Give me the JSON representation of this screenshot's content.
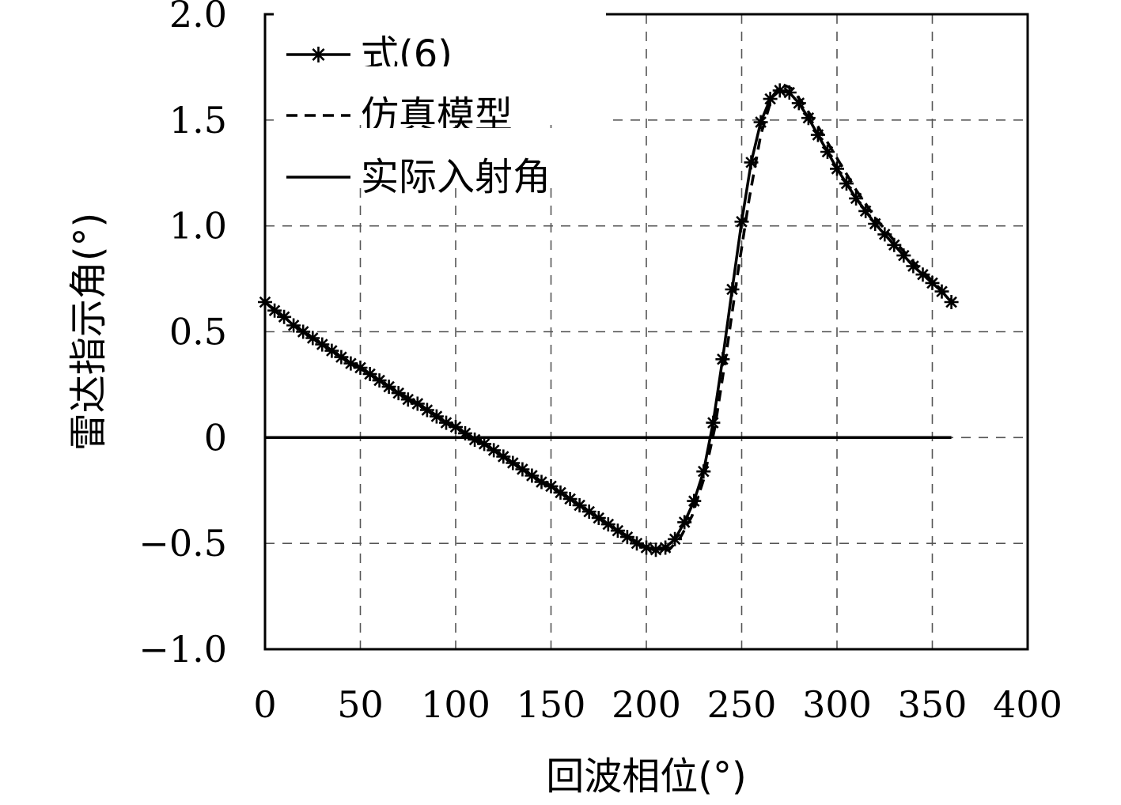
{
  "chart_data": {
    "type": "line",
    "xlabel": "回波相位(°)",
    "ylabel": "雷达指示角(°)",
    "xlim": [
      0,
      400
    ],
    "ylim": [
      -1.0,
      2.0
    ],
    "xticks": [
      0,
      50,
      100,
      150,
      200,
      250,
      300,
      350,
      400
    ],
    "xtick_labels": [
      "0",
      "50",
      "100",
      "150",
      "200",
      "250",
      "300",
      "350",
      "400"
    ],
    "yticks": [
      -1.0,
      -0.5,
      0,
      0.5,
      1.0,
      1.5,
      2.0
    ],
    "ytick_labels": [
      "−1.0",
      "−0.5",
      "0",
      "0.5",
      "1.0",
      "1.5",
      "2.0"
    ],
    "grid": true,
    "legend_position": "top-left",
    "series": [
      {
        "name": "式(6)",
        "style": "solid-with-asterisk-markers",
        "color": "#000000",
        "x": [
          0,
          5,
          10,
          15,
          20,
          25,
          30,
          35,
          40,
          45,
          50,
          55,
          60,
          65,
          70,
          75,
          80,
          85,
          90,
          95,
          100,
          105,
          110,
          115,
          120,
          125,
          130,
          135,
          140,
          145,
          150,
          155,
          160,
          165,
          170,
          175,
          180,
          185,
          190,
          195,
          200,
          205,
          210,
          215,
          220,
          225,
          230,
          235,
          240,
          245,
          250,
          255,
          260,
          265,
          270,
          275,
          280,
          285,
          290,
          295,
          300,
          305,
          310,
          315,
          320,
          325,
          330,
          335,
          340,
          345,
          350,
          355,
          360
        ],
        "y": [
          0.64,
          0.6,
          0.57,
          0.53,
          0.5,
          0.47,
          0.44,
          0.41,
          0.38,
          0.35,
          0.33,
          0.3,
          0.27,
          0.24,
          0.21,
          0.18,
          0.16,
          0.13,
          0.1,
          0.07,
          0.05,
          0.02,
          -0.01,
          -0.03,
          -0.06,
          -0.09,
          -0.12,
          -0.15,
          -0.18,
          -0.21,
          -0.23,
          -0.26,
          -0.29,
          -0.32,
          -0.35,
          -0.38,
          -0.41,
          -0.44,
          -0.47,
          -0.5,
          -0.52,
          -0.53,
          -0.52,
          -0.48,
          -0.4,
          -0.3,
          -0.16,
          0.07,
          0.37,
          0.7,
          1.02,
          1.3,
          1.49,
          1.6,
          1.64,
          1.63,
          1.58,
          1.51,
          1.43,
          1.35,
          1.27,
          1.2,
          1.13,
          1.07,
          1.01,
          0.96,
          0.91,
          0.86,
          0.81,
          0.77,
          0.73,
          0.69,
          0.64
        ]
      },
      {
        "name": "仿真模型",
        "style": "dashed",
        "color": "#000000",
        "x": [
          0,
          20,
          40,
          60,
          80,
          100,
          120,
          140,
          160,
          180,
          200,
          207,
          212,
          218,
          224,
          230,
          236,
          242,
          248,
          254,
          260,
          266,
          271,
          276,
          282,
          290,
          300,
          310,
          320,
          330,
          340,
          350,
          360
        ],
        "y": [
          0.64,
          0.5,
          0.38,
          0.27,
          0.16,
          0.05,
          -0.06,
          -0.18,
          -0.29,
          -0.41,
          -0.52,
          -0.54,
          -0.53,
          -0.47,
          -0.37,
          -0.2,
          0.05,
          0.4,
          0.78,
          1.13,
          1.43,
          1.61,
          1.67,
          1.65,
          1.58,
          1.47,
          1.32,
          1.17,
          1.04,
          0.93,
          0.83,
          0.74,
          0.65
        ]
      },
      {
        "name": "实际入射角",
        "style": "solid",
        "color": "#000000",
        "x": [
          0,
          360
        ],
        "y": [
          0,
          0
        ]
      }
    ]
  }
}
